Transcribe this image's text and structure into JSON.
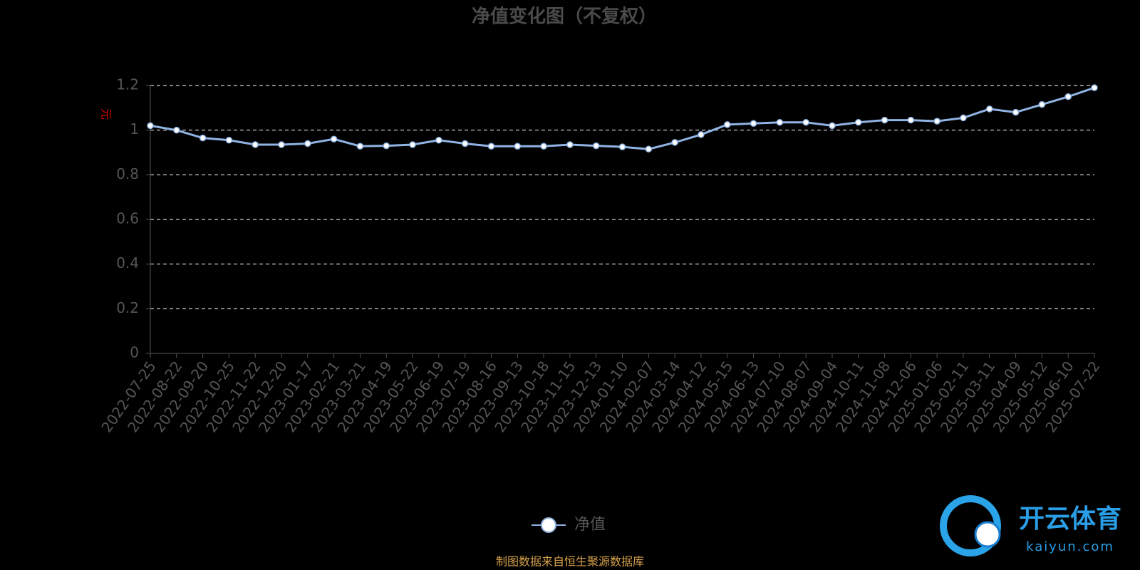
{
  "chart_data": {
    "type": "line",
    "title": "净值变化图（不复权）",
    "y_label": "元",
    "source": "制图数据来自恒生聚源数据库",
    "watermark": {
      "brand": "开云体育",
      "site": "kaiyun.com"
    },
    "categories": [
      "2022-07-25",
      "2022-08-22",
      "2022-09-20",
      "2022-10-25",
      "2022-11-22",
      "2022-12-20",
      "2023-01-17",
      "2023-02-21",
      "2023-03-21",
      "2023-04-19",
      "2023-05-22",
      "2023-06-19",
      "2023-07-19",
      "2023-08-16",
      "2023-09-13",
      "2023-10-18",
      "2023-11-15",
      "2023-12-13",
      "2024-01-10",
      "2024-02-07",
      "2024-03-14",
      "2024-04-12",
      "2024-05-15",
      "2024-06-13",
      "2024-07-10",
      "2024-08-07",
      "2024-09-04",
      "2024-10-11",
      "2024-11-08",
      "2024-12-06",
      "2025-01-06",
      "2025-02-11",
      "2025-03-11",
      "2025-04-09",
      "2025-05-12",
      "2025-06-10",
      "2025-07-22"
    ],
    "series": [
      {
        "name": "净值",
        "color": "#8fb3e3",
        "values": [
          1.02,
          1.0,
          0.965,
          0.955,
          0.935,
          0.935,
          0.94,
          0.96,
          0.928,
          0.93,
          0.935,
          0.955,
          0.94,
          0.928,
          0.928,
          0.928,
          0.935,
          0.93,
          0.925,
          0.915,
          0.945,
          0.98,
          1.025,
          1.03,
          1.035,
          1.035,
          1.02,
          1.035,
          1.045,
          1.045,
          1.04,
          1.055,
          1.095,
          1.08,
          1.115,
          1.15,
          1.19
        ]
      }
    ],
    "ylim": [
      0,
      1.2
    ],
    "yticks": [
      0,
      0.2,
      0.4,
      0.6,
      0.8,
      1,
      1.2
    ],
    "grid": true
  }
}
